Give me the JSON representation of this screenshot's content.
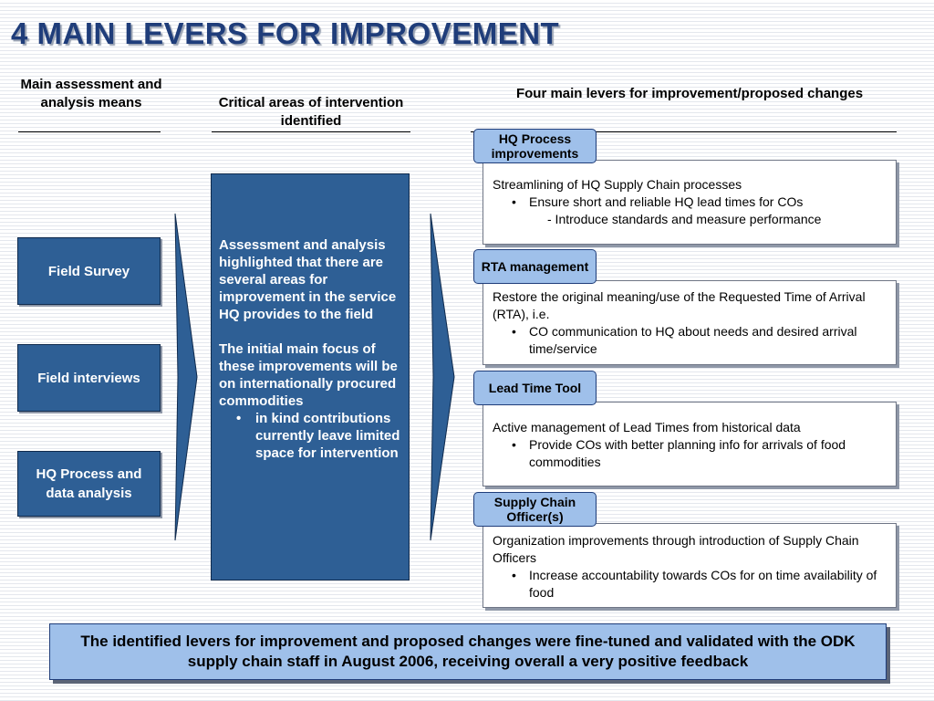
{
  "title": "4 MAIN LEVERS FOR IMPROVEMENT",
  "columns": {
    "left": "Main assessment and analysis means",
    "middle": "Critical areas of intervention identified",
    "right": "Four main levers for improvement/proposed changes"
  },
  "means": [
    "Field Survey",
    "Field interviews",
    "HQ Process and data analysis"
  ],
  "center": {
    "para1": "Assessment and analysis highlighted that there are several areas for improvement in the service HQ provides to the field",
    "para2": "The initial main focus of these improvements will be on internationally procured commodities",
    "bullet": "in kind contributions currently leave limited space for intervention"
  },
  "levers": [
    {
      "label": "HQ Process improvements",
      "lead": "Streamlining of HQ Supply Chain processes",
      "bullets": [
        "Ensure short and reliable HQ lead times for COs"
      ],
      "sub": "- Introduce standards and measure performance"
    },
    {
      "label": "RTA management",
      "lead": "Restore the original meaning/use of the Requested Time of Arrival (RTA), i.e.",
      "bullets": [
        "CO communication to HQ about needs and desired arrival time/service"
      ]
    },
    {
      "label": "Lead Time Tool",
      "lead": "Active management of Lead Times from historical data",
      "bullets": [
        "Provide COs with better planning info for arrivals of food commodities"
      ]
    },
    {
      "label": "Supply Chain Officer(s)",
      "lead": "Organization improvements through introduction of Supply Chain Officers",
      "bullets": [
        "Increase accountability towards COs for on time availability of food"
      ]
    }
  ],
  "footer": "The identified levers for improvement and proposed changes were fine-tuned and validated with the ODK supply chain staff in August 2006, receiving overall a very positive feedback",
  "bullet_char": "•",
  "colors": {
    "box_blue": "#2e5f95",
    "tab_blue": "#9fc0ea",
    "title": "#1f3d7a"
  }
}
